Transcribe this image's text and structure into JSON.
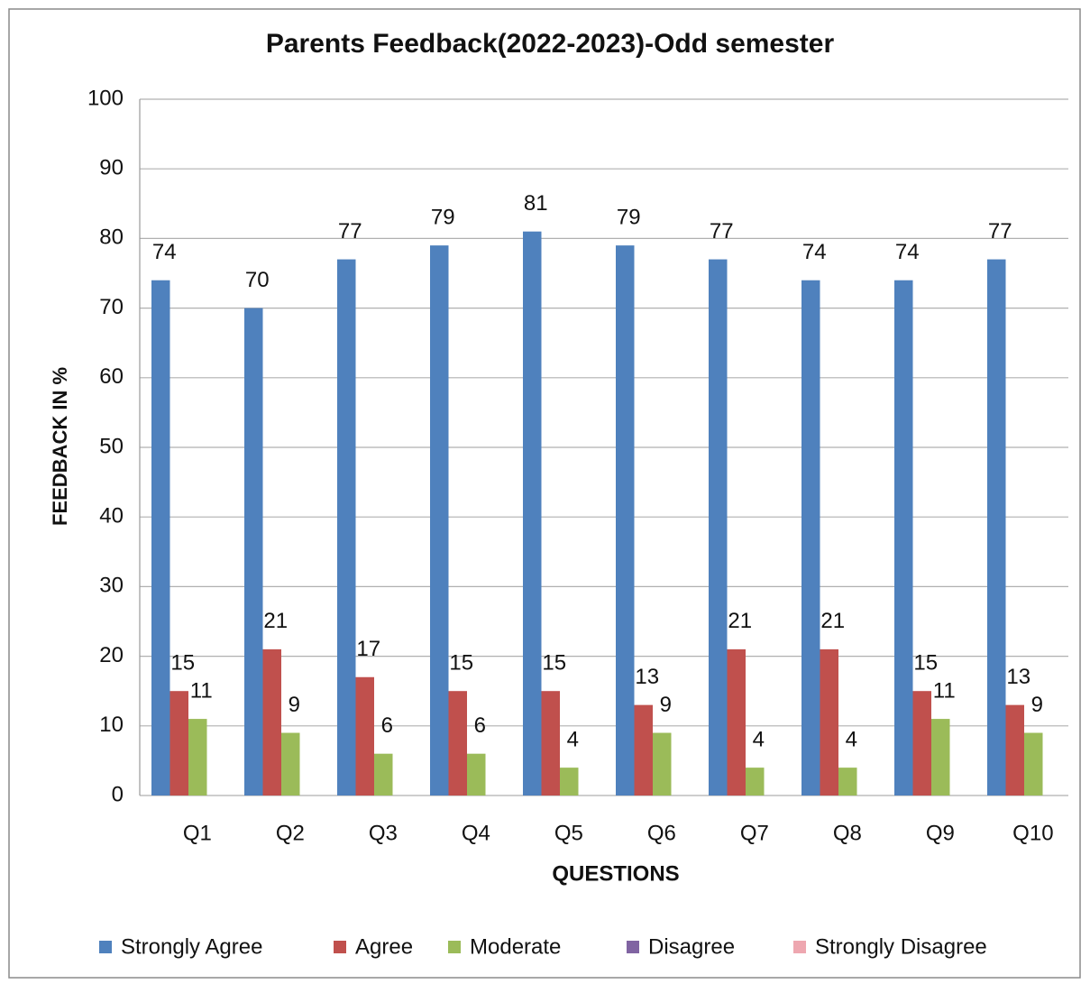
{
  "chart_data": {
    "type": "bar",
    "title": "Parents Feedback(2022-2023)-Odd semester",
    "x_label": "QUESTIONS",
    "y_label": "FEEDBACK IN %",
    "categories": [
      "Q1",
      "Q2",
      "Q3",
      "Q4",
      "Q5",
      "Q6",
      "Q7",
      "Q8",
      "Q9",
      "Q10"
    ],
    "series": [
      {
        "name": "Strongly Agree",
        "color": "#4f81bd",
        "values": [
          74,
          70,
          77,
          79,
          81,
          79,
          77,
          74,
          74,
          77
        ]
      },
      {
        "name": "Agree",
        "color": "#c0504d",
        "values": [
          15,
          21,
          17,
          15,
          15,
          13,
          21,
          21,
          15,
          13
        ]
      },
      {
        "name": "Moderate",
        "color": "#9bbb59",
        "values": [
          11,
          9,
          6,
          6,
          4,
          9,
          4,
          4,
          11,
          9
        ]
      },
      {
        "name": "Disagree",
        "color": "#8064a2"
      },
      {
        "name": "Strongly Disagree",
        "color": "#eea7b0"
      }
    ],
    "ylim": [
      0,
      100
    ],
    "yticks": [
      0,
      10,
      20,
      30,
      40,
      50,
      60,
      70,
      80,
      90,
      100
    ],
    "grid": true,
    "legend": "bottom"
  }
}
